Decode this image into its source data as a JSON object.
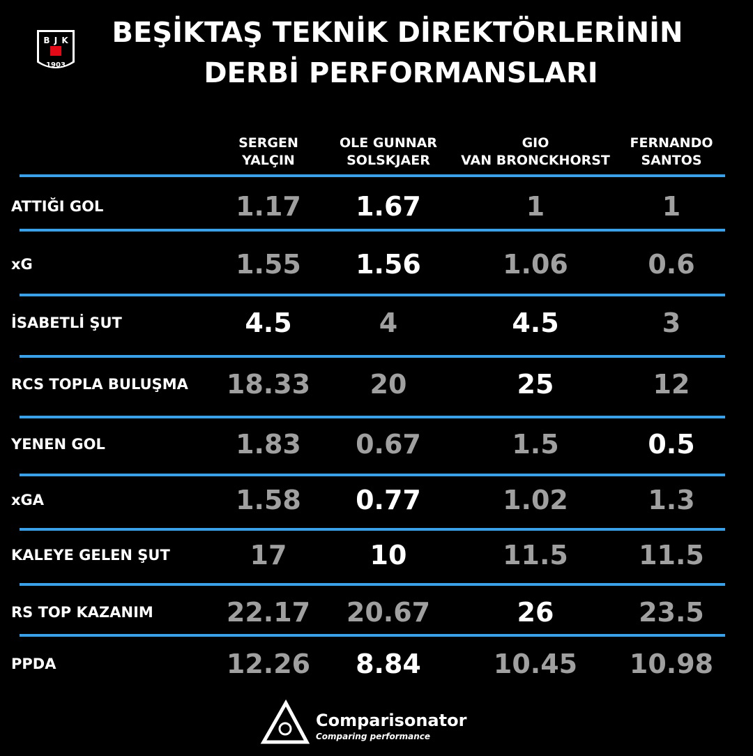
{
  "title": [
    "BEŞİKTAŞ TEKNİK DİREKTÖRLERİNİN",
    "DERBİ PERFORMANSLARI"
  ],
  "logo": {
    "letters": [
      "B",
      "J",
      "K"
    ],
    "year": "1903"
  },
  "table": {
    "columns": [
      [
        "SERGEN",
        "YALÇIN"
      ],
      [
        "OLE GUNNAR",
        "SOLSKJAER"
      ],
      [
        "GIO",
        "VAN BRONCKHORST"
      ],
      [
        "FERNANDO",
        "SANTOS"
      ]
    ],
    "rows": [
      {
        "label": "ATTIĞI GOL",
        "values": [
          1.17,
          1.67,
          1,
          1
        ],
        "highlighted": [
          false,
          true,
          false,
          false
        ]
      },
      {
        "label": "xG",
        "values": [
          1.55,
          1.56,
          1.06,
          0.6
        ],
        "highlighted": [
          false,
          true,
          false,
          false
        ]
      },
      {
        "label": "İSABETLİ ŞUT",
        "values": [
          4.5,
          4,
          4.5,
          3
        ],
        "highlighted": [
          true,
          false,
          true,
          false
        ]
      },
      {
        "label": "RCS TOPLA BULUŞMA",
        "values": [
          18.33,
          20,
          25,
          12
        ],
        "highlighted": [
          false,
          false,
          true,
          false
        ]
      },
      {
        "label": "YENEN GOL",
        "values": [
          1.83,
          0.67,
          1.5,
          0.5
        ],
        "highlighted": [
          false,
          false,
          false,
          true
        ]
      },
      {
        "label": "xGA",
        "values": [
          1.58,
          0.77,
          1.02,
          1.3
        ],
        "highlighted": [
          false,
          true,
          false,
          false
        ]
      },
      {
        "label": "KALEYE GELEN ŞUT",
        "values": [
          17,
          10,
          11.5,
          11.5
        ],
        "highlighted": [
          false,
          true,
          false,
          false
        ]
      },
      {
        "label": "RS TOP KAZANIM",
        "values": [
          22.17,
          20.67,
          26,
          23.5
        ],
        "highlighted": [
          false,
          false,
          true,
          false
        ]
      },
      {
        "label": "PPDA",
        "values": [
          12.26,
          8.84,
          10.45,
          10.98
        ],
        "highlighted": [
          false,
          true,
          false,
          false
        ]
      }
    ]
  },
  "footer": {
    "brand": "Comparisonator",
    "tagline": "Comparing performance"
  }
}
